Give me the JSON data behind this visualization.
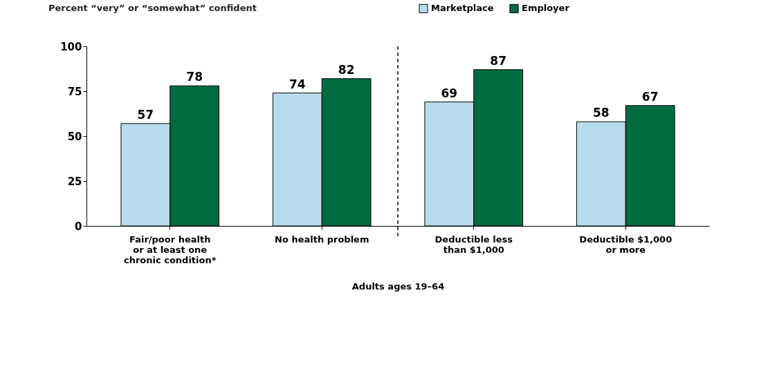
{
  "chart_data": {
    "type": "bar",
    "annotations": [
      "Percent “very” or “somewhat” confident"
    ],
    "xlabel": "Adults ages 19–64",
    "categories": [
      "Fair/poor health or at least one chronic condition*",
      "No health problem",
      "Deductible less than $1,000",
      "Deductible $1,000 or more"
    ],
    "series": [
      {
        "name": "Marketplace",
        "color": "#b9dcec",
        "values": [
          57,
          74,
          69,
          58
        ]
      },
      {
        "name": "Employer",
        "color": "#006b3f",
        "values": [
          78,
          82,
          87,
          67
        ]
      }
    ],
    "ylim": [
      0,
      100
    ],
    "yticks": [
      0,
      25,
      50,
      75,
      100
    ],
    "data_labels": true,
    "grid": false,
    "legend": "top right"
  }
}
